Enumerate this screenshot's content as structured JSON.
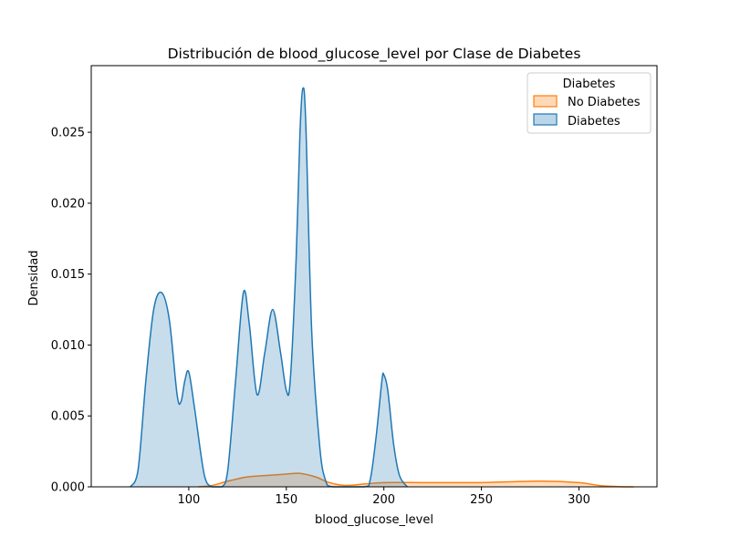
{
  "chart_data": {
    "type": "area",
    "title": "Distribución de blood_glucose_level por Clase de Diabetes",
    "xlabel": "blood_glucose_level",
    "ylabel": "Densidad",
    "xlim": [
      50,
      340
    ],
    "ylim": [
      0,
      0.0297
    ],
    "xticks": [
      100,
      150,
      200,
      250,
      300
    ],
    "yticks": [
      0.0,
      0.005,
      0.01,
      0.015,
      0.02,
      0.025
    ],
    "ytick_labels": [
      "0.000",
      "0.005",
      "0.010",
      "0.015",
      "0.020",
      "0.025"
    ],
    "grid": false,
    "legend": {
      "title": "Diabetes",
      "position": "top-right",
      "entries": [
        "No Diabetes",
        "Diabetes"
      ]
    },
    "series": [
      {
        "name": "No Diabetes",
        "color": "#ff7f0e",
        "fill_opacity": 0.25,
        "points": [
          [
            105,
            0.0
          ],
          [
            112,
            0.0001
          ],
          [
            120,
            0.0004
          ],
          [
            130,
            0.0007
          ],
          [
            140,
            0.0008
          ],
          [
            150,
            0.0009
          ],
          [
            157,
            0.00095
          ],
          [
            165,
            0.0007
          ],
          [
            172,
            0.0003
          ],
          [
            180,
            0.0001
          ],
          [
            190,
            0.0002
          ],
          [
            200,
            0.0003
          ],
          [
            220,
            0.0003
          ],
          [
            250,
            0.0003
          ],
          [
            280,
            0.0004
          ],
          [
            300,
            0.0003
          ],
          [
            310,
            0.0001
          ],
          [
            320,
            2e-05
          ],
          [
            328,
            0.0
          ]
        ]
      },
      {
        "name": "Diabetes",
        "color": "#1f77b4",
        "fill_opacity": 0.25,
        "points": [
          [
            70,
            0.0
          ],
          [
            74,
            0.0012
          ],
          [
            78,
            0.0075
          ],
          [
            82,
            0.0125
          ],
          [
            86,
            0.0137
          ],
          [
            90,
            0.0118
          ],
          [
            94,
            0.0065
          ],
          [
            96,
            0.006
          ],
          [
            98,
            0.0075
          ],
          [
            100,
            0.0081
          ],
          [
            103,
            0.0055
          ],
          [
            108,
            0.0008
          ],
          [
            112,
            0.0
          ],
          [
            117,
            0.0
          ],
          [
            120,
            0.0012
          ],
          [
            124,
            0.0075
          ],
          [
            128,
            0.0137
          ],
          [
            131,
            0.0115
          ],
          [
            135,
            0.0065
          ],
          [
            139,
            0.0095
          ],
          [
            143,
            0.0125
          ],
          [
            147,
            0.0095
          ],
          [
            150,
            0.0068
          ],
          [
            152,
            0.0075
          ],
          [
            155,
            0.016
          ],
          [
            157,
            0.025
          ],
          [
            158.5,
            0.0281
          ],
          [
            160,
            0.0255
          ],
          [
            163,
            0.011
          ],
          [
            167,
            0.003
          ],
          [
            170,
            0.0005
          ],
          [
            174,
            0.0
          ],
          [
            190,
            0.0
          ],
          [
            193,
            0.0005
          ],
          [
            196,
            0.0035
          ],
          [
            199,
            0.0075
          ],
          [
            200,
            0.0079
          ],
          [
            202,
            0.0068
          ],
          [
            205,
            0.003
          ],
          [
            208,
            0.0008
          ],
          [
            212,
            0.0
          ]
        ]
      }
    ]
  }
}
